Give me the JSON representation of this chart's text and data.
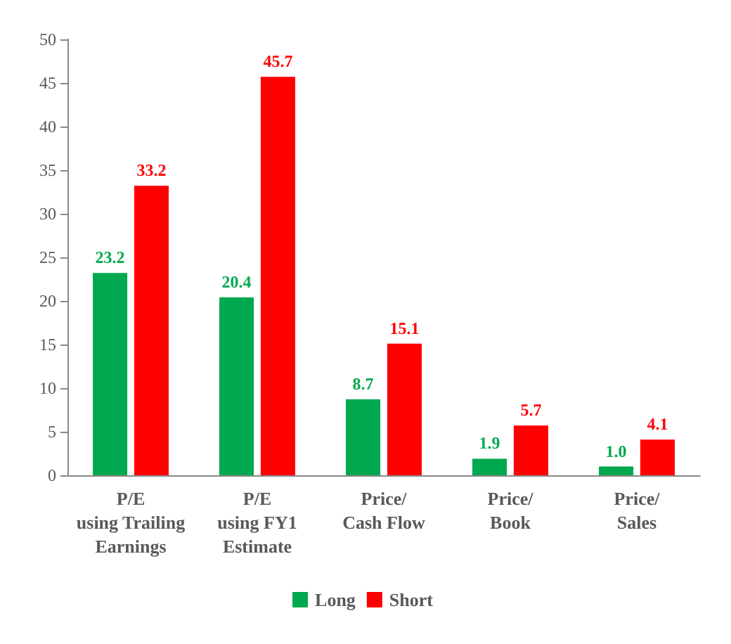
{
  "chart_data": {
    "type": "bar",
    "categories": [
      "P/E\nusing Trailing\nEarnings",
      "P/E\nusing FY1\nEstimate",
      "Price/\nCash Flow",
      "Price/\nBook",
      "Price/\nSales"
    ],
    "series": [
      {
        "name": "Long",
        "color": "#00a94f",
        "values": [
          23.2,
          20.4,
          8.7,
          1.9,
          1.0
        ],
        "value_labels": [
          "23.2",
          "20.4",
          "8.7",
          "1.9",
          "1.0"
        ]
      },
      {
        "name": "Short",
        "color": "#ff0000",
        "values": [
          33.2,
          45.7,
          15.1,
          5.7,
          4.1
        ],
        "value_labels": [
          "33.2",
          "45.7",
          "15.1",
          "5.7",
          "4.1"
        ]
      }
    ],
    "ylim": [
      0,
      50
    ],
    "yticks": [
      0,
      5,
      10,
      15,
      20,
      25,
      30,
      35,
      40,
      45,
      50
    ],
    "legend": "bottom",
    "grid": false
  }
}
